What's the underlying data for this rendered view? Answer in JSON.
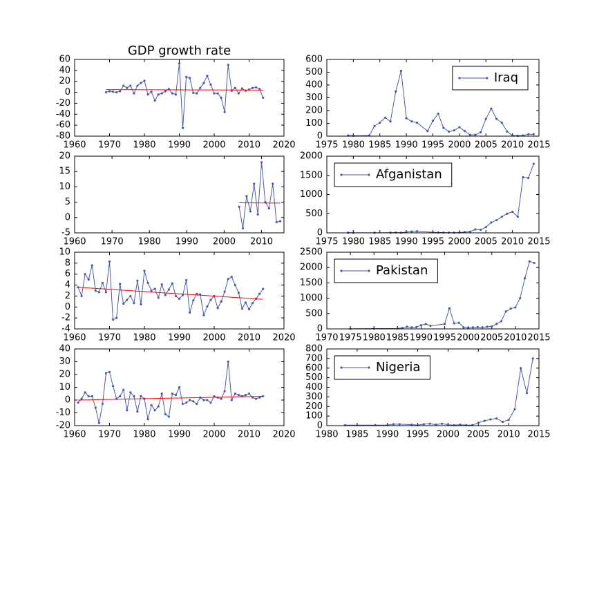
{
  "chart_data": [
    {
      "type": "line",
      "title": "GDP growth rate",
      "x": [
        1969,
        1970,
        1971,
        1972,
        1973,
        1974,
        1975,
        1976,
        1977,
        1978,
        1979,
        1980,
        1981,
        1982,
        1983,
        1984,
        1985,
        1986,
        1987,
        1988,
        1989,
        1990,
        1991,
        1992,
        1993,
        1994,
        1995,
        1996,
        1997,
        1998,
        1999,
        2000,
        2001,
        2002,
        2003,
        2004,
        2005,
        2006,
        2007,
        2008,
        2009,
        2010,
        2011,
        2012,
        2013,
        2014
      ],
      "series": [
        {
          "color": "#4a5aa8",
          "values": [
            0,
            2,
            1,
            0,
            2,
            12,
            8,
            12,
            -2,
            12,
            17,
            21,
            -4,
            1,
            -15,
            -4,
            -2,
            2,
            6,
            -2,
            -4,
            53,
            -65,
            28,
            26,
            -1,
            -2,
            8,
            17,
            30,
            14,
            -2,
            -2,
            -10,
            -36,
            50,
            3,
            8,
            -2,
            7,
            3,
            5,
            8,
            9,
            6,
            -10
          ]
        }
      ],
      "trend": {
        "x": [
          1969,
          2014
        ],
        "values": [
          5,
          4
        ],
        "color": "#ff0000"
      },
      "xlim": [
        1960,
        2020
      ],
      "xticks": [
        1960,
        1970,
        1980,
        1990,
        2000,
        2010,
        2020
      ],
      "ylim": [
        -80,
        60
      ],
      "yticks": [
        -80,
        -60,
        -40,
        -20,
        0,
        20,
        40,
        60
      ]
    },
    {
      "type": "line",
      "x": [
        1979,
        1980,
        1983,
        1984,
        1985,
        1986,
        1987,
        1988,
        1989,
        1990,
        1991,
        1992,
        1994,
        1995,
        1996,
        1997,
        1998,
        1999,
        2000,
        2001,
        2002,
        2003,
        2004,
        2005,
        2006,
        2007,
        2008,
        2009,
        2010,
        2011,
        2012,
        2013,
        2014
      ],
      "series": [
        {
          "name": "Iraq",
          "color": "#4a5aa8",
          "values": [
            5,
            3,
            5,
            80,
            105,
            145,
            115,
            350,
            510,
            140,
            115,
            105,
            40,
            120,
            175,
            65,
            35,
            45,
            70,
            40,
            10,
            10,
            30,
            135,
            215,
            135,
            105,
            35,
            5,
            3,
            5,
            15,
            15
          ]
        }
      ],
      "legend": "upper right",
      "xlim": [
        1975,
        2015
      ],
      "xticks": [
        1975,
        1980,
        1985,
        1990,
        1995,
        2000,
        2005,
        2010,
        2015
      ],
      "ylim": [
        0,
        600
      ],
      "yticks": [
        0,
        100,
        200,
        300,
        400,
        500,
        600
      ]
    },
    {
      "type": "line",
      "x": [
        2004,
        2005,
        2006,
        2007,
        2008,
        2009,
        2010,
        2011,
        2012,
        2013,
        2014,
        2015
      ],
      "series": [
        {
          "color": "#4a5aa8",
          "values": [
            3.5,
            -3.5,
            7,
            2,
            11,
            1,
            18,
            5,
            3,
            11,
            -1.5,
            -1.2
          ]
        }
      ],
      "trend": {
        "x": [
          2004,
          2015
        ],
        "values": [
          4.8,
          4.7
        ],
        "color": "#ff0000"
      },
      "xlim": [
        1960,
        2016
      ],
      "xticks": [
        1960,
        1970,
        1980,
        1990,
        2000,
        2010
      ],
      "ylim": [
        -5,
        20
      ],
      "yticks": [
        -5,
        0,
        5,
        10,
        15,
        20
      ]
    },
    {
      "type": "line",
      "x": [
        1979,
        1980,
        1984,
        1987,
        1988,
        1989,
        1990,
        1991,
        1992,
        1995,
        1996,
        1997,
        1998,
        1999,
        2000,
        2001,
        2002,
        2003,
        2004,
        2005,
        2006,
        2007,
        2008,
        2009,
        2010,
        2011,
        2012,
        2013,
        2014
      ],
      "series": [
        {
          "name": "Afganistan",
          "color": "#4a5aa8",
          "values": [
            5,
            3,
            2,
            5,
            8,
            5,
            20,
            35,
            40,
            15,
            10,
            8,
            5,
            5,
            10,
            20,
            30,
            90,
            80,
            150,
            270,
            330,
            420,
            500,
            550,
            420,
            1450,
            1430,
            1800
          ]
        }
      ],
      "legend": "upper left",
      "xlim": [
        1975,
        2015
      ],
      "xticks": [
        1975,
        1980,
        1985,
        1990,
        1995,
        2000,
        2005,
        2010,
        2015
      ],
      "ylim": [
        0,
        2000
      ],
      "yticks": [
        0,
        500,
        1000,
        1500,
        2000
      ]
    },
    {
      "type": "line",
      "x": [
        1961,
        1962,
        1963,
        1964,
        1965,
        1966,
        1967,
        1968,
        1969,
        1970,
        1971,
        1972,
        1973,
        1974,
        1975,
        1976,
        1977,
        1978,
        1979,
        1980,
        1981,
        1982,
        1983,
        1984,
        1985,
        1986,
        1987,
        1988,
        1989,
        1990,
        1991,
        1992,
        1993,
        1994,
        1995,
        1996,
        1997,
        1998,
        1999,
        2000,
        2001,
        2002,
        2003,
        2004,
        2005,
        2006,
        2007,
        2008,
        2009,
        2010,
        2011,
        2012,
        2013,
        2014
      ],
      "series": [
        {
          "color": "#4a5aa8",
          "values": [
            3.6,
            2,
            6,
            5,
            7.6,
            3,
            2.7,
            4.4,
            2.7,
            8.3,
            -2.3,
            -2,
            4.2,
            0.6,
            1.3,
            2,
            0.7,
            4.8,
            0.5,
            6.6,
            4.4,
            3,
            3.3,
            1.7,
            4.1,
            2.2,
            3.2,
            4.3,
            2,
            1.5,
            2.2,
            4.9,
            -1,
            1.2,
            2.4,
            2.3,
            -1.5,
            0.1,
            1.3,
            2,
            -0.2,
            1,
            2.8,
            5.1,
            5.5,
            4,
            2.6,
            -0.3,
            0.8,
            -0.4,
            0.7,
            1.5,
            2.4,
            3.3
          ]
        }
      ],
      "trend": {
        "x": [
          1961,
          2014
        ],
        "values": [
          3.6,
          1.4
        ],
        "color": "#ff0000"
      },
      "xlim": [
        1960,
        2020
      ],
      "xticks": [
        1960,
        1970,
        1980,
        1990,
        2000,
        2010,
        2020
      ],
      "ylim": [
        -4,
        10
      ],
      "yticks": [
        -4,
        -2,
        0,
        2,
        4,
        6,
        8,
        10
      ]
    },
    {
      "type": "line",
      "x": [
        1975,
        1980,
        1985,
        1986,
        1987,
        1988,
        1989,
        1990,
        1991,
        1992,
        1995,
        1996,
        1997,
        1998,
        1999,
        2000,
        2001,
        2002,
        2003,
        2004,
        2005,
        2006,
        2007,
        2008,
        2009,
        2010,
        2011,
        2012,
        2013,
        2014
      ],
      "series": [
        {
          "name": "Pakistan",
          "color": "#4a5aa8",
          "values": [
            5,
            10,
            15,
            30,
            70,
            50,
            60,
            120,
            160,
            100,
            160,
            670,
            180,
            200,
            50,
            40,
            50,
            60,
            50,
            70,
            80,
            160,
            250,
            570,
            660,
            700,
            1000,
            1650,
            2200,
            2150
          ]
        }
      ],
      "legend": "upper left",
      "xlim": [
        1970,
        2015
      ],
      "xticks": [
        1970,
        1975,
        1980,
        1985,
        1990,
        1995,
        2000,
        2005,
        2010,
        2015
      ],
      "ylim": [
        0,
        2500
      ],
      "yticks": [
        0,
        500,
        1000,
        1500,
        2000,
        2500
      ]
    },
    {
      "type": "line",
      "x": [
        1961,
        1962,
        1963,
        1964,
        1965,
        1966,
        1967,
        1968,
        1969,
        1970,
        1971,
        1972,
        1973,
        1974,
        1975,
        1976,
        1977,
        1978,
        1979,
        1980,
        1981,
        1982,
        1983,
        1984,
        1985,
        1986,
        1987,
        1988,
        1989,
        1990,
        1991,
        1992,
        1993,
        1994,
        1995,
        1996,
        1997,
        1998,
        1999,
        2000,
        2001,
        2002,
        2003,
        2004,
        2005,
        2006,
        2007,
        2008,
        2009,
        2010,
        2011,
        2012,
        2013,
        2014
      ],
      "series": [
        {
          "color": "#4a5aa8",
          "values": [
            -2,
            1,
            6,
            3,
            3,
            -6,
            -18,
            -3,
            21,
            22,
            11,
            1,
            3,
            8,
            -8,
            6,
            3,
            -9,
            3,
            1,
            -15,
            -4,
            -8,
            -5,
            5,
            -11,
            -13,
            5,
            4,
            10,
            -3,
            -2,
            0,
            -1,
            -3,
            2,
            0,
            0,
            -2,
            3,
            2,
            1,
            7,
            30,
            0,
            5,
            4,
            3,
            4,
            5,
            2,
            1,
            2,
            3
          ]
        }
      ],
      "trend": {
        "x": [
          1961,
          2014
        ],
        "values": [
          0,
          3
        ],
        "color": "#ff0000"
      },
      "xlim": [
        1960,
        2020
      ],
      "xticks": [
        1960,
        1970,
        1980,
        1990,
        2000,
        2010,
        2020
      ],
      "ylim": [
        -20,
        40
      ],
      "yticks": [
        -20,
        -10,
        0,
        10,
        20,
        30,
        40
      ]
    },
    {
      "type": "line",
      "x": [
        1983,
        1985,
        1988,
        1990,
        1991,
        1992,
        1994,
        1995,
        1996,
        1997,
        1998,
        1999,
        2000,
        2001,
        2002,
        2003,
        2004,
        2005,
        2006,
        2007,
        2008,
        2009,
        2010,
        2011,
        2012,
        2013,
        2014
      ],
      "series": [
        {
          "name": "Nigeria",
          "color": "#4a5aa8",
          "values": [
            5,
            5,
            5,
            5,
            15,
            15,
            10,
            5,
            15,
            20,
            10,
            20,
            10,
            5,
            10,
            5,
            5,
            30,
            50,
            65,
            75,
            40,
            60,
            170,
            600,
            340,
            700
          ]
        }
      ],
      "legend": "upper left",
      "xlim": [
        1980,
        2015
      ],
      "xticks": [
        1980,
        1985,
        1990,
        1995,
        2000,
        2005,
        2010,
        2015
      ],
      "ylim": [
        0,
        800
      ],
      "yticks": [
        0,
        100,
        200,
        300,
        400,
        500,
        600,
        700,
        800
      ]
    }
  ]
}
